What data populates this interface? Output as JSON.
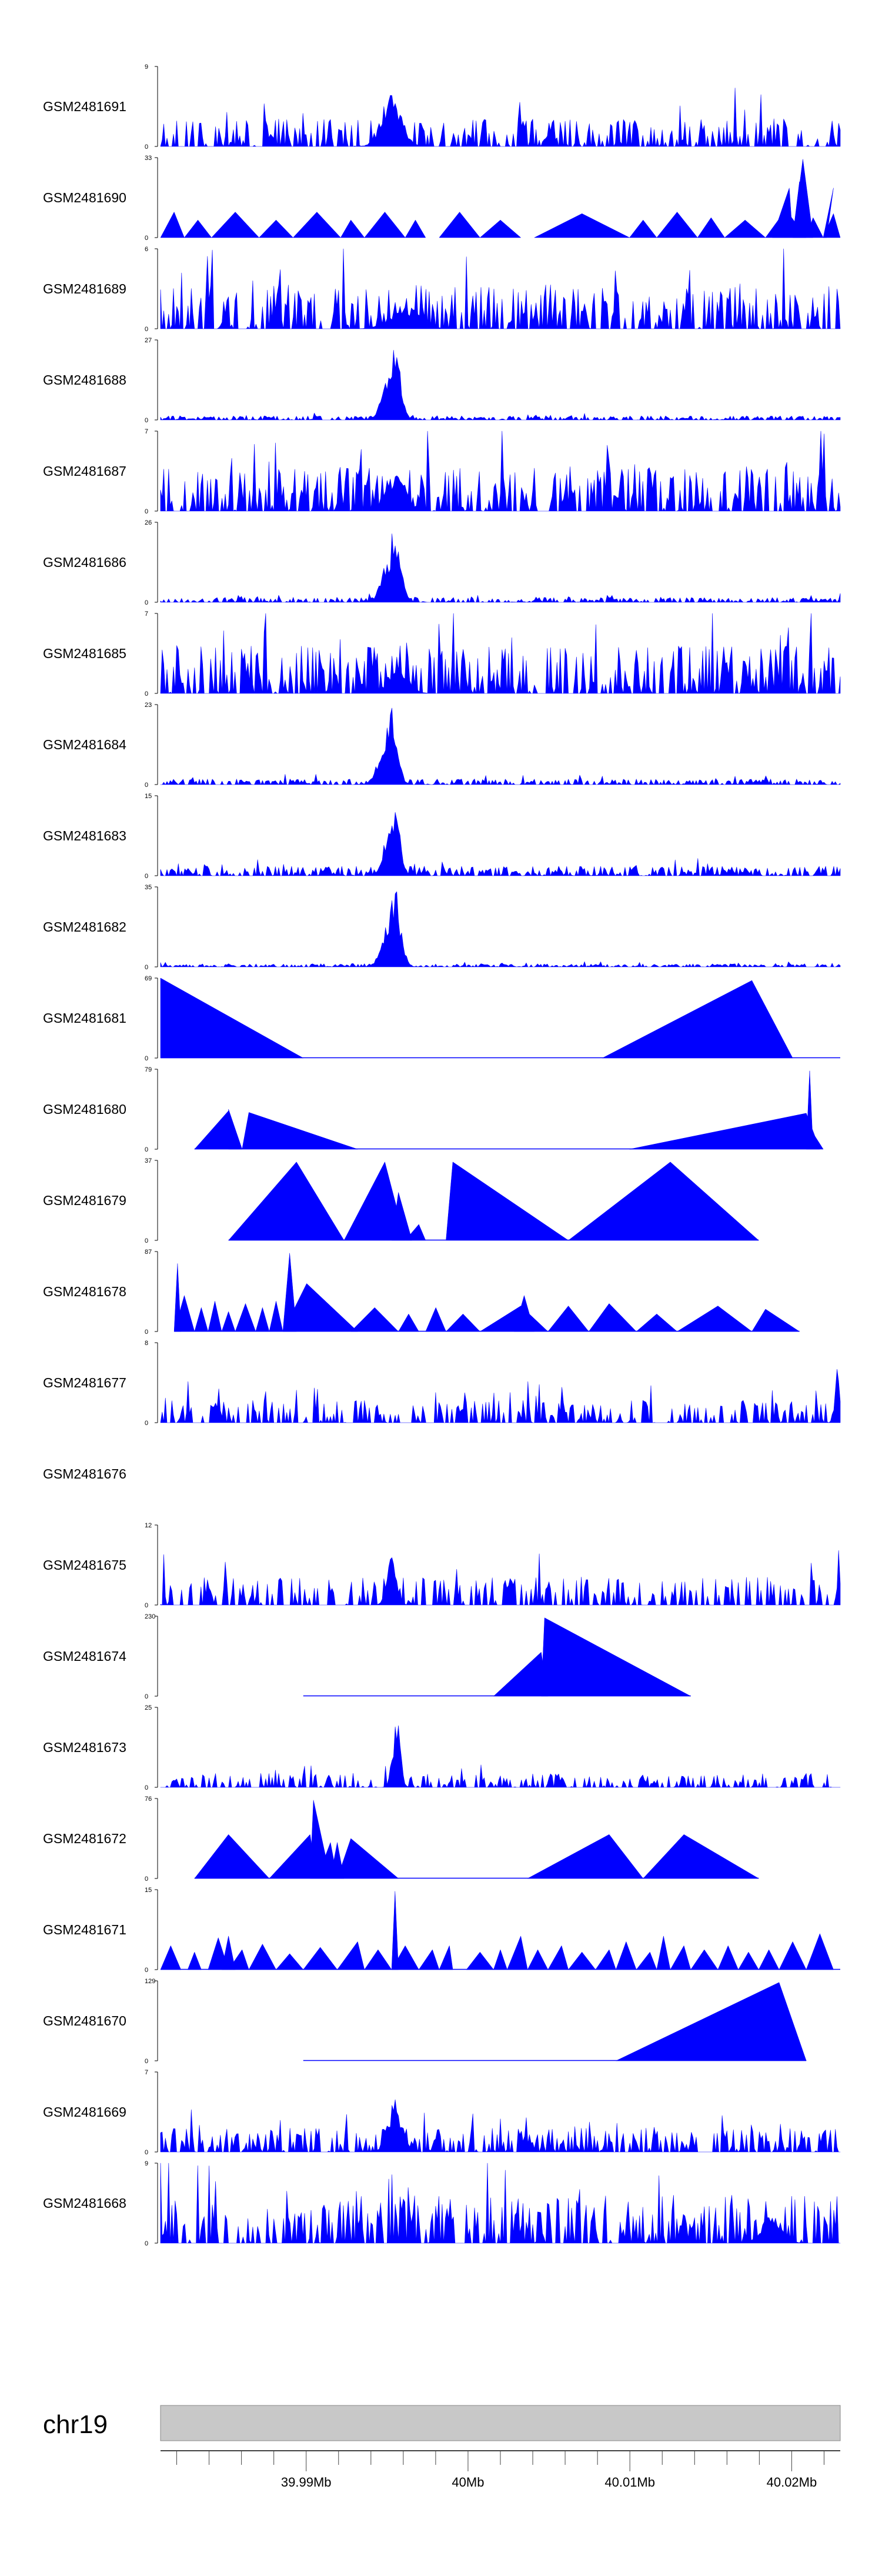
{
  "chart_data": {
    "type": "area",
    "style": {
      "fill_color": "#0000ff",
      "line_color": "#0000ff",
      "ideogram_color": "#c8c8c8"
    },
    "chromosome": "chr19",
    "x_range_bp": [
      39981000,
      40023000
    ],
    "x_ticks": [
      {
        "value": 39990000,
        "label": "39.99Mb"
      },
      {
        "value": 40000000,
        "label": "40Mb"
      },
      {
        "value": 40010000,
        "label": "40.01Mb"
      },
      {
        "value": 40020000,
        "label": "40.02Mb"
      }
    ],
    "tracks": [
      {
        "name": "GSM2481691",
        "ymax": 9,
        "kind": "dense",
        "density": 0.55,
        "noise": 0.35,
        "peak_center": 0.34,
        "peak_width": 0.02,
        "peak_boost": 0.7,
        "seed": 11
      },
      {
        "name": "GSM2481690",
        "ymax": 33,
        "kind": "triangles",
        "tris": [
          [
            0.0,
            0.02,
            0.035,
            0.32
          ],
          [
            0.035,
            0.055,
            0.075,
            0.22
          ],
          [
            0.075,
            0.11,
            0.145,
            0.32
          ],
          [
            0.145,
            0.17,
            0.195,
            0.22
          ],
          [
            0.195,
            0.23,
            0.265,
            0.32
          ],
          [
            0.265,
            0.28,
            0.3,
            0.22
          ],
          [
            0.3,
            0.33,
            0.36,
            0.32
          ],
          [
            0.36,
            0.375,
            0.39,
            0.22
          ],
          [
            0.41,
            0.44,
            0.47,
            0.32
          ],
          [
            0.47,
            0.5,
            0.53,
            0.22
          ],
          [
            0.55,
            0.62,
            0.69,
            0.3
          ],
          [
            0.69,
            0.71,
            0.73,
            0.22
          ],
          [
            0.73,
            0.76,
            0.79,
            0.32
          ],
          [
            0.79,
            0.81,
            0.83,
            0.25
          ],
          [
            0.83,
            0.86,
            0.89,
            0.22
          ],
          [
            0.89,
            0.92,
            0.95,
            0.35
          ],
          [
            0.9,
            0.925,
            0.93,
            0.62
          ],
          [
            0.93,
            0.94,
            0.95,
            0.7
          ],
          [
            0.93,
            0.945,
            0.96,
            0.98
          ],
          [
            0.95,
            0.96,
            0.975,
            0.25
          ],
          [
            0.975,
            0.99,
            0.98,
            0.62
          ],
          [
            0.975,
            0.99,
            1.0,
            0.3
          ]
        ],
        "seed": 12
      },
      {
        "name": "GSM2481689",
        "ymax": 6,
        "kind": "dense",
        "density": 0.6,
        "noise": 0.55,
        "peak_center": 0.36,
        "peak_width": 0.03,
        "peak_boost": 0.3,
        "seed": 13
      },
      {
        "name": "GSM2481688",
        "ymax": 27,
        "kind": "peak",
        "density": 0.7,
        "noise": 0.05,
        "peak_center": 0.345,
        "peak_width": 0.012,
        "peak_boost": 1.0,
        "seed": 14
      },
      {
        "name": "GSM2481687",
        "ymax": 7,
        "kind": "dense",
        "density": 0.65,
        "noise": 0.55,
        "peak_center": 0.345,
        "peak_width": 0.02,
        "peak_boost": 0.5,
        "seed": 15
      },
      {
        "name": "GSM2481686",
        "ymax": 26,
        "kind": "peak",
        "density": 0.7,
        "noise": 0.06,
        "peak_center": 0.345,
        "peak_width": 0.012,
        "peak_boost": 1.0,
        "seed": 16
      },
      {
        "name": "GSM2481685",
        "ymax": 7,
        "kind": "dense",
        "density": 0.65,
        "noise": 0.6,
        "peak_center": 0.35,
        "peak_width": 0.02,
        "peak_boost": 0.35,
        "seed": 17
      },
      {
        "name": "GSM2481684",
        "ymax": 23,
        "kind": "peak",
        "density": 0.7,
        "noise": 0.07,
        "peak_center": 0.34,
        "peak_width": 0.012,
        "peak_boost": 1.0,
        "seed": 18
      },
      {
        "name": "GSM2481683",
        "ymax": 15,
        "kind": "peak",
        "density": 0.7,
        "noise": 0.12,
        "peak_center": 0.345,
        "peak_width": 0.01,
        "peak_boost": 1.0,
        "seed": 19
      },
      {
        "name": "GSM2481682",
        "ymax": 35,
        "kind": "peak",
        "density": 0.7,
        "noise": 0.04,
        "peak_center": 0.345,
        "peak_width": 0.012,
        "peak_boost": 1.0,
        "seed": 20
      },
      {
        "name": "GSM2481681",
        "ymax": 69,
        "kind": "triangles",
        "baseline": [
          0.0,
          1.0
        ],
        "tris": [
          [
            0.0,
            0.0,
            0.21,
            1.0
          ],
          [
            0.65,
            0.87,
            0.93,
            0.97
          ]
        ],
        "seed": 21
      },
      {
        "name": "GSM2481680",
        "ymax": 79,
        "kind": "triangles",
        "baseline": [
          0.05,
          0.97
        ],
        "tris": [
          [
            0.05,
            0.1,
            0.12,
            0.48
          ],
          [
            0.1,
            0.1,
            0.12,
            0.5
          ],
          [
            0.12,
            0.13,
            0.29,
            0.46
          ],
          [
            0.69,
            0.95,
            0.97,
            0.45
          ],
          [
            0.95,
            0.955,
            0.96,
            0.98
          ],
          [
            0.96,
            0.96,
            0.975,
            0.2
          ]
        ],
        "seed": 22
      },
      {
        "name": "GSM2481679",
        "ymax": 37,
        "kind": "triangles",
        "baseline": [
          0.1,
          0.88
        ],
        "tris": [
          [
            0.1,
            0.2,
            0.27,
            0.98
          ],
          [
            0.27,
            0.33,
            0.36,
            0.98
          ],
          [
            0.34,
            0.35,
            0.37,
            0.6
          ],
          [
            0.36,
            0.38,
            0.39,
            0.2
          ],
          [
            0.42,
            0.43,
            0.6,
            0.98
          ],
          [
            0.6,
            0.75,
            0.88,
            0.98
          ]
        ],
        "seed": 23
      },
      {
        "name": "GSM2481678",
        "ymax": 87,
        "kind": "triangles",
        "baseline": [
          0.02,
          0.94
        ],
        "tris": [
          [
            0.02,
            0.025,
            0.03,
            0.85
          ],
          [
            0.02,
            0.035,
            0.05,
            0.45
          ],
          [
            0.05,
            0.06,
            0.07,
            0.3
          ],
          [
            0.07,
            0.08,
            0.09,
            0.38
          ],
          [
            0.09,
            0.1,
            0.11,
            0.25
          ],
          [
            0.11,
            0.125,
            0.14,
            0.35
          ],
          [
            0.14,
            0.15,
            0.16,
            0.3
          ],
          [
            0.16,
            0.17,
            0.18,
            0.38
          ],
          [
            0.18,
            0.19,
            0.2,
            0.98
          ],
          [
            0.18,
            0.215,
            0.29,
            0.6
          ],
          [
            0.28,
            0.315,
            0.35,
            0.3
          ],
          [
            0.35,
            0.365,
            0.38,
            0.22
          ],
          [
            0.39,
            0.405,
            0.42,
            0.3
          ],
          [
            0.42,
            0.445,
            0.47,
            0.22
          ],
          [
            0.47,
            0.53,
            0.57,
            0.32
          ],
          [
            0.52,
            0.535,
            0.55,
            0.45
          ],
          [
            0.57,
            0.6,
            0.63,
            0.32
          ],
          [
            0.63,
            0.66,
            0.7,
            0.35
          ],
          [
            0.7,
            0.73,
            0.76,
            0.22
          ],
          [
            0.76,
            0.82,
            0.87,
            0.32
          ],
          [
            0.87,
            0.89,
            0.94,
            0.28
          ]
        ],
        "seed": 24
      },
      {
        "name": "GSM2481677",
        "ymax": 8,
        "kind": "dense",
        "density": 0.55,
        "noise": 0.28,
        "peak_center": 0.995,
        "peak_width": 0.004,
        "peak_boost": 0.9,
        "seed": 25
      },
      {
        "name": "GSM2481676",
        "ymax": null,
        "kind": "empty",
        "seed": 26
      },
      {
        "name": "GSM2481675",
        "ymax": 12,
        "kind": "dense",
        "density": 0.5,
        "noise": 0.35,
        "peak_center": 0.34,
        "peak_width": 0.01,
        "peak_boost": 0.6,
        "seed": 27
      },
      {
        "name": "GSM2481674",
        "ymax": 230,
        "kind": "triangles",
        "baseline": [
          0.21,
          0.78
        ],
        "tris": [
          [
            0.49,
            0.56,
            0.57,
            0.55
          ],
          [
            0.56,
            0.565,
            0.78,
            0.98
          ]
        ],
        "seed": 28
      },
      {
        "name": "GSM2481673",
        "ymax": 25,
        "kind": "dense",
        "density": 0.5,
        "noise": 0.18,
        "peak_center": 0.347,
        "peak_width": 0.008,
        "peak_boost": 0.9,
        "seed": 29
      },
      {
        "name": "GSM2481672",
        "ymax": 76,
        "kind": "triangles",
        "baseline": [
          0.05,
          0.88
        ],
        "tris": [
          [
            0.05,
            0.1,
            0.16,
            0.55
          ],
          [
            0.16,
            0.22,
            0.23,
            0.55
          ],
          [
            0.22,
            0.225,
            0.25,
            0.98
          ],
          [
            0.23,
            0.25,
            0.26,
            0.45
          ],
          [
            0.25,
            0.26,
            0.27,
            0.45
          ],
          [
            0.26,
            0.28,
            0.35,
            0.5
          ],
          [
            0.54,
            0.66,
            0.71,
            0.55
          ],
          [
            0.71,
            0.77,
            0.88,
            0.55
          ]
        ],
        "seed": 30
      },
      {
        "name": "GSM2481671",
        "ymax": 15,
        "kind": "triangles",
        "baseline": [
          0.0,
          1.0
        ],
        "tris": [
          [
            0.0,
            0.015,
            0.03,
            0.3
          ],
          [
            0.04,
            0.05,
            0.06,
            0.22
          ],
          [
            0.07,
            0.085,
            0.1,
            0.4
          ],
          [
            0.09,
            0.1,
            0.11,
            0.42
          ],
          [
            0.1,
            0.12,
            0.13,
            0.25
          ],
          [
            0.13,
            0.15,
            0.17,
            0.32
          ],
          [
            0.17,
            0.19,
            0.21,
            0.2
          ],
          [
            0.21,
            0.235,
            0.26,
            0.28
          ],
          [
            0.26,
            0.29,
            0.3,
            0.35
          ],
          [
            0.3,
            0.32,
            0.34,
            0.25
          ],
          [
            0.34,
            0.345,
            0.35,
            0.98
          ],
          [
            0.34,
            0.36,
            0.38,
            0.3
          ],
          [
            0.38,
            0.4,
            0.41,
            0.25
          ],
          [
            0.41,
            0.425,
            0.43,
            0.3
          ],
          [
            0.45,
            0.47,
            0.49,
            0.22
          ],
          [
            0.49,
            0.5,
            0.51,
            0.25
          ],
          [
            0.51,
            0.53,
            0.54,
            0.42
          ],
          [
            0.54,
            0.555,
            0.57,
            0.25
          ],
          [
            0.57,
            0.59,
            0.6,
            0.3
          ],
          [
            0.6,
            0.62,
            0.64,
            0.22
          ],
          [
            0.64,
            0.66,
            0.67,
            0.25
          ],
          [
            0.67,
            0.685,
            0.7,
            0.35
          ],
          [
            0.7,
            0.72,
            0.73,
            0.22
          ],
          [
            0.73,
            0.74,
            0.75,
            0.42
          ],
          [
            0.75,
            0.77,
            0.78,
            0.3
          ],
          [
            0.78,
            0.8,
            0.82,
            0.25
          ],
          [
            0.82,
            0.835,
            0.85,
            0.3
          ],
          [
            0.85,
            0.865,
            0.88,
            0.22
          ],
          [
            0.88,
            0.895,
            0.91,
            0.25
          ],
          [
            0.91,
            0.93,
            0.95,
            0.35
          ],
          [
            0.95,
            0.97,
            0.99,
            0.45
          ]
        ],
        "seed": 31
      },
      {
        "name": "GSM2481670",
        "ymax": 129,
        "kind": "triangles",
        "baseline": [
          0.21,
          0.95
        ],
        "tris": [
          [
            0.67,
            0.91,
            0.95,
            0.98
          ]
        ],
        "seed": 32
      },
      {
        "name": "GSM2481669",
        "ymax": 7,
        "kind": "dense",
        "density": 0.6,
        "noise": 0.3,
        "peak_center": 0.345,
        "peak_width": 0.015,
        "peak_boost": 0.7,
        "seed": 33
      },
      {
        "name": "GSM2481668",
        "ymax": 9,
        "kind": "dense",
        "density": 0.6,
        "noise": 0.6,
        "peak_center": 0.9,
        "peak_width": 0.02,
        "peak_boost": 0.4,
        "seed": 34
      }
    ]
  }
}
